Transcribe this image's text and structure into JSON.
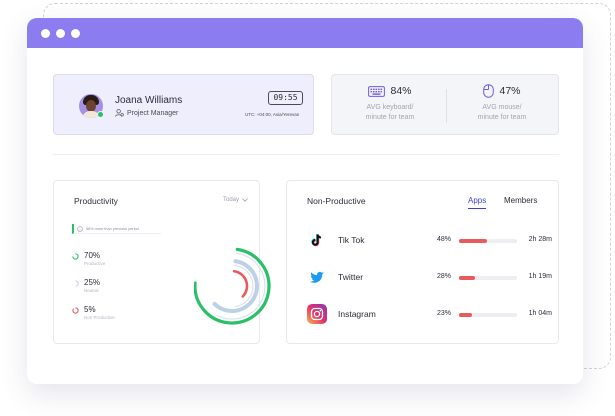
{
  "colors": {
    "titlebar": "#8b7cf0",
    "accent": "#3d3fd6",
    "productive": "#29c068",
    "neutral": "#bcd0e6",
    "non_productive": "#e95a5d"
  },
  "profile": {
    "name": "Joana Williams",
    "role": "Project Manager",
    "clock": "09:55",
    "timezone": "UTC: +04:00, Asia/Yerevan"
  },
  "stats": [
    {
      "icon": "keyboard-icon",
      "value": "84%",
      "label_line1": "AVG keyboard/",
      "label_line2": "minute for team"
    },
    {
      "icon": "mouse-icon",
      "value": "47%",
      "label_line1": "AVG mouse/",
      "label_line2": "minute for team"
    }
  ],
  "productivity": {
    "title": "Productivity",
    "period": "Today",
    "note": "58% more than previous period",
    "metrics": [
      {
        "value": "70%",
        "label": "Productive",
        "percent": 70
      },
      {
        "value": "25%",
        "label": "Neutral",
        "percent": 25
      },
      {
        "value": "5%",
        "label": "Non Productive",
        "percent": 5
      }
    ]
  },
  "non_productive": {
    "title": "Non-Productive",
    "tabs": [
      "Apps",
      "Members"
    ],
    "active_tab": "Apps",
    "apps": [
      {
        "name": "Tik Tok",
        "icon": "tiktok-icon",
        "percent": "48%",
        "fill": 0.48,
        "time": "2h 28m"
      },
      {
        "name": "Twitter",
        "icon": "twitter-icon",
        "percent": "28%",
        "fill": 0.28,
        "time": "1h 19m"
      },
      {
        "name": "Instagram",
        "icon": "instagram-icon",
        "percent": "23%",
        "fill": 0.23,
        "time": "1h 04m"
      }
    ]
  }
}
